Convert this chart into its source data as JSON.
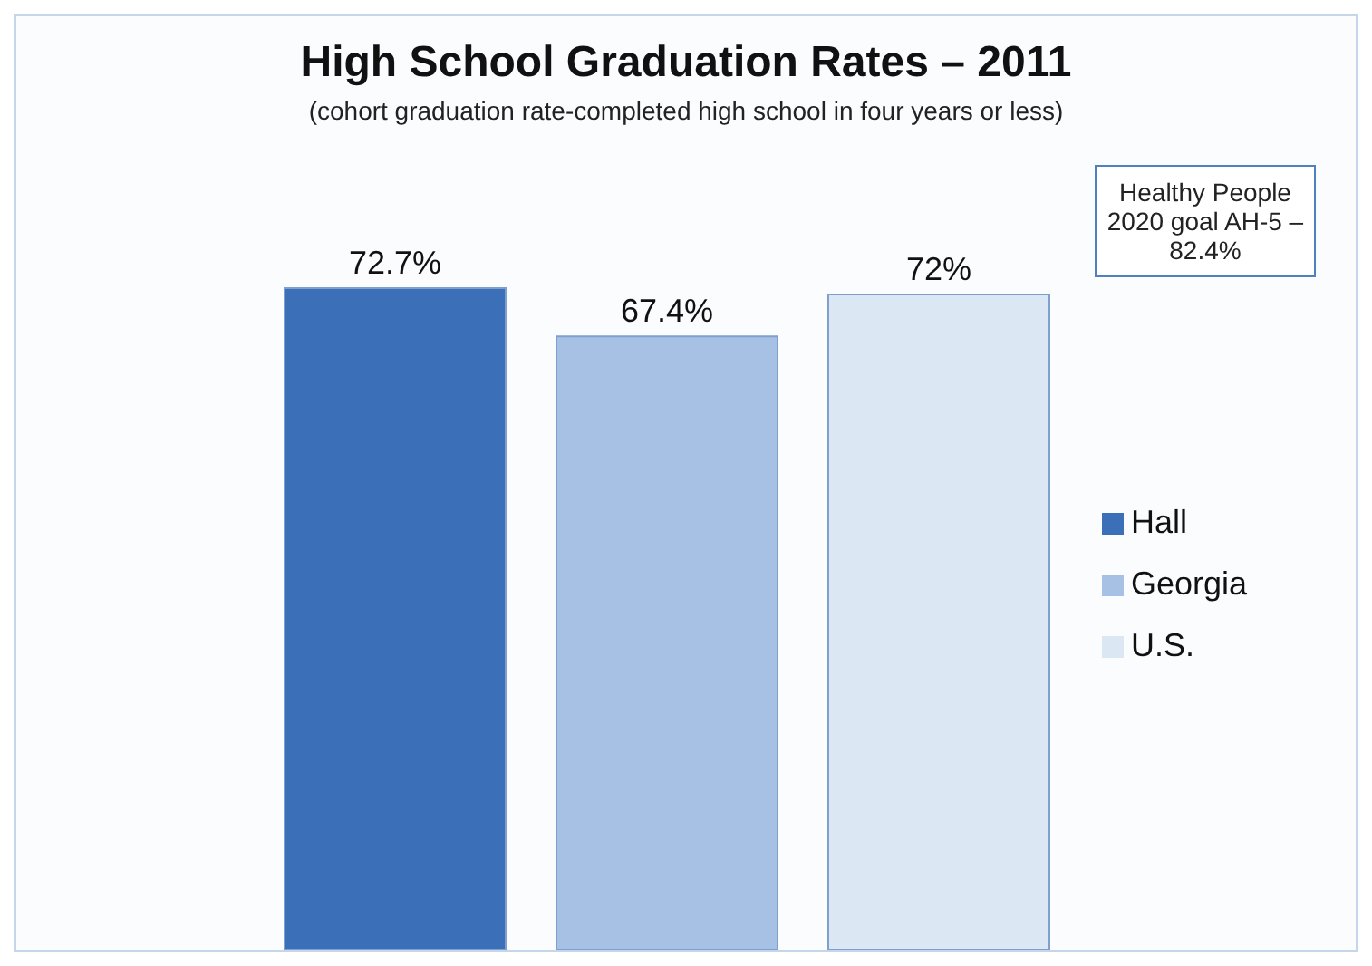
{
  "chart_data": {
    "type": "bar",
    "title": "High School Graduation Rates – 2011",
    "subtitle": "(cohort graduation rate-completed high school in four years or less)",
    "annotations": [
      "Healthy People 2020 goal AH-5 – 82.4%"
    ],
    "categories": [
      null
    ],
    "series": [
      {
        "name": "Hall",
        "color": "#3b70b8",
        "values": [
          72.7
        ],
        "value_labels": [
          "72.7%"
        ]
      },
      {
        "name": "Georgia",
        "color": "#a6c1e3",
        "values": [
          67.4
        ],
        "value_labels": [
          "67.4%"
        ]
      },
      {
        "name": "U.S.",
        "color": "#dce7f4",
        "values": [
          72
        ],
        "value_labels": [
          "72%"
        ]
      }
    ],
    "legend": "right"
  }
}
